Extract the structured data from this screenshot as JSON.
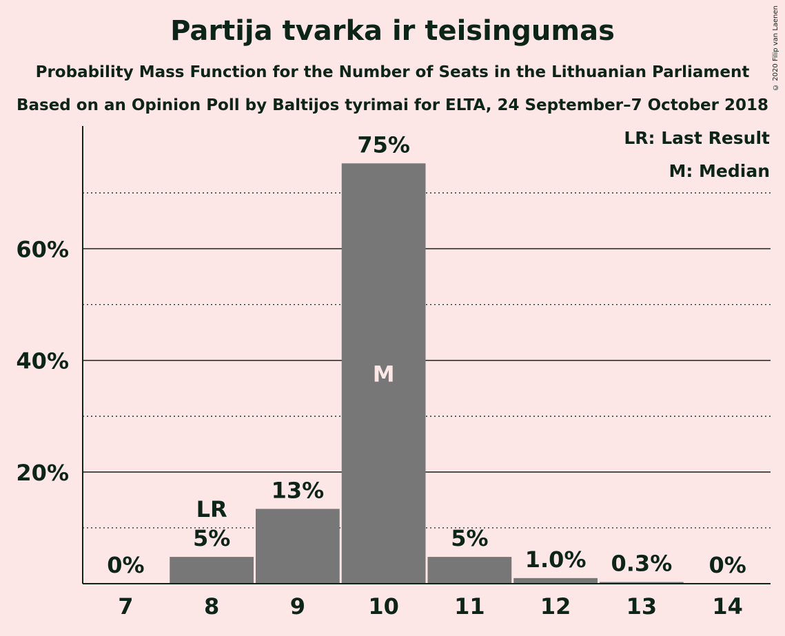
{
  "chart_data": {
    "type": "bar",
    "title": "Partija tvarka ir teisingumas",
    "subtitle": "Probability Mass Function for the Number of Seats in the Lithuanian Parliament",
    "subtitle2": "Based on an Opinion Poll by Baltijos tyrimai for ELTA, 24 September–7 October 2018",
    "categories": [
      "7",
      "8",
      "9",
      "10",
      "11",
      "12",
      "13",
      "14"
    ],
    "values": [
      0,
      4.8,
      13.4,
      75.3,
      4.8,
      1.0,
      0.3,
      0
    ],
    "value_labels": [
      "0%",
      "5%",
      "13%",
      "75%",
      "5%",
      "1.0%",
      "0.3%",
      "0%"
    ],
    "ylim": [
      0,
      82
    ],
    "yticks": [
      20,
      40,
      60
    ],
    "ytick_labels": [
      "20%",
      "40%",
      "60%"
    ],
    "minor_gridlines": [
      10,
      30,
      50,
      70
    ],
    "last_result_index": 1,
    "last_result_label": "LR",
    "median_index": 3,
    "median_label": "M",
    "legend": [
      "LR: Last Result",
      "M: Median"
    ],
    "legend_position": "top-right",
    "bar_color": "#777777",
    "background_color": "#FDE6E6",
    "text_color": "#0D2419",
    "grid": true
  },
  "copyright": "© 2020 Filip van Laenen"
}
